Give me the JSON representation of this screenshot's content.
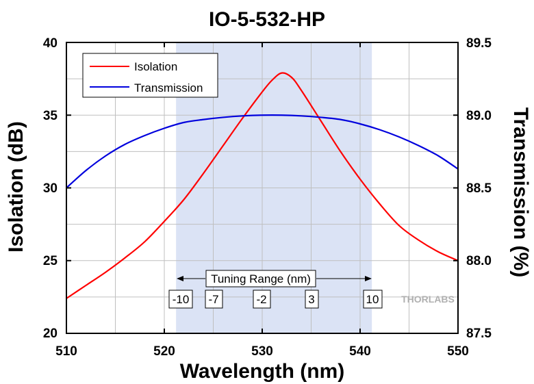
{
  "chart_data": {
    "type": "line",
    "title": "IO-5-532-HP",
    "xlabel": "Wavelength (nm)",
    "ylabel_left": "Isolation (dB)",
    "ylabel_right": "Transmission (%)",
    "xlim": [
      510,
      550
    ],
    "ylim_left": [
      20,
      40
    ],
    "ylim_right": [
      87.5,
      89.5
    ],
    "x_ticks": [
      "510",
      "520",
      "530",
      "540",
      "550"
    ],
    "y_left_ticks": [
      "20",
      "25",
      "30",
      "35",
      "40"
    ],
    "y_right_ticks": [
      "87.5",
      "88.0",
      "88.5",
      "89.0",
      "89.5"
    ],
    "grid": true,
    "legend_position": "top-left",
    "shaded_region": {
      "x_range": [
        521.2,
        541.2
      ],
      "color": "#dbe3f5"
    },
    "annotation": {
      "label": "Tuning Range (nm)",
      "x_range": [
        521.2,
        541.2
      ],
      "y": 23.7
    },
    "tuning_marks": [
      {
        "label": "-10",
        "x": 521
      },
      {
        "label": "-7",
        "x": 524
      },
      {
        "label": "-2",
        "x": 529
      },
      {
        "label": "3",
        "x": 534
      },
      {
        "label": "10",
        "x": 541
      }
    ],
    "series": [
      {
        "name": "Isolation",
        "axis": "left",
        "color": "#ff0000",
        "x": [
          510,
          512,
          514,
          516,
          518,
          520,
          522,
          524,
          526,
          528,
          530,
          531,
          532,
          533,
          534,
          536,
          538,
          540,
          542,
          544,
          546,
          548,
          550
        ],
        "values": [
          22.4,
          23.3,
          24.2,
          25.2,
          26.3,
          27.7,
          29.2,
          31.0,
          32.9,
          34.8,
          36.6,
          37.4,
          37.9,
          37.6,
          36.7,
          34.6,
          32.5,
          30.6,
          28.9,
          27.4,
          26.4,
          25.6,
          25.0
        ]
      },
      {
        "name": "Transmission",
        "axis": "right",
        "color": "#0000dd",
        "x": [
          510,
          512,
          514,
          516,
          518,
          520,
          522,
          524,
          526,
          528,
          530,
          532,
          534,
          536,
          538,
          540,
          542,
          544,
          546,
          548,
          550
        ],
        "values": [
          88.5,
          88.62,
          88.72,
          88.8,
          88.86,
          88.91,
          88.95,
          88.97,
          88.985,
          88.995,
          89.0,
          89.0,
          88.995,
          88.985,
          88.97,
          88.94,
          88.9,
          88.85,
          88.79,
          88.72,
          88.63
        ]
      }
    ]
  },
  "logo": {
    "text": "THORLABS",
    "color": "#b0b0b0"
  }
}
